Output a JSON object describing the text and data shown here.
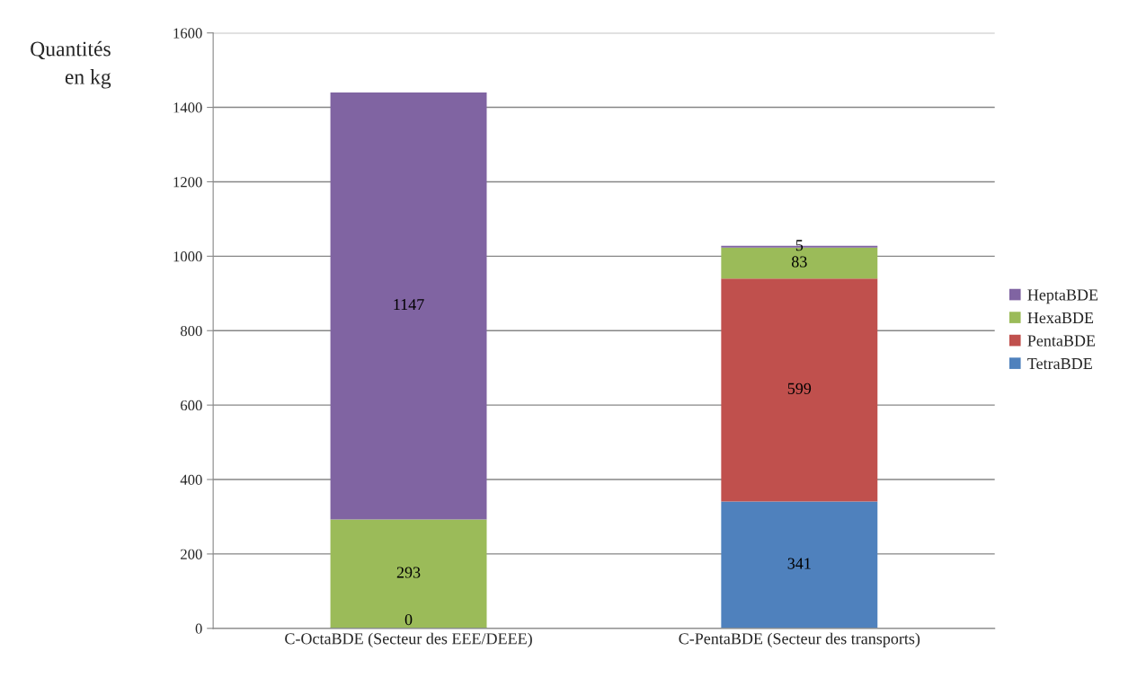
{
  "chart_data": {
    "type": "bar",
    "stacked": true,
    "ylabel": "Quantités\nen kg",
    "categories": [
      "C-OctaBDE (Secteur des EEE/DEEE)",
      "C-PentaBDE (Secteur des transports)"
    ],
    "series": [
      {
        "name": "TetraBDE",
        "color": "#4f81bd",
        "values": [
          0,
          341
        ],
        "value_labels": [
          "0",
          "341"
        ]
      },
      {
        "name": "PentaBDE",
        "color": "#c0504d",
        "values": [
          null,
          599
        ],
        "value_labels": [
          null,
          "599"
        ]
      },
      {
        "name": "HexaBDE",
        "color": "#9bbb59",
        "values": [
          293,
          83
        ],
        "value_labels": [
          "293",
          "83"
        ]
      },
      {
        "name": "HeptaBDE",
        "color": "#8064a2",
        "values": [
          1147,
          5
        ],
        "value_labels": [
          "1147",
          "5"
        ]
      }
    ],
    "ylim": [
      0,
      1600
    ],
    "yticks": [
      0,
      200,
      400,
      600,
      800,
      1000,
      1200,
      1400,
      1600
    ],
    "grid": "y",
    "legend": "right"
  }
}
